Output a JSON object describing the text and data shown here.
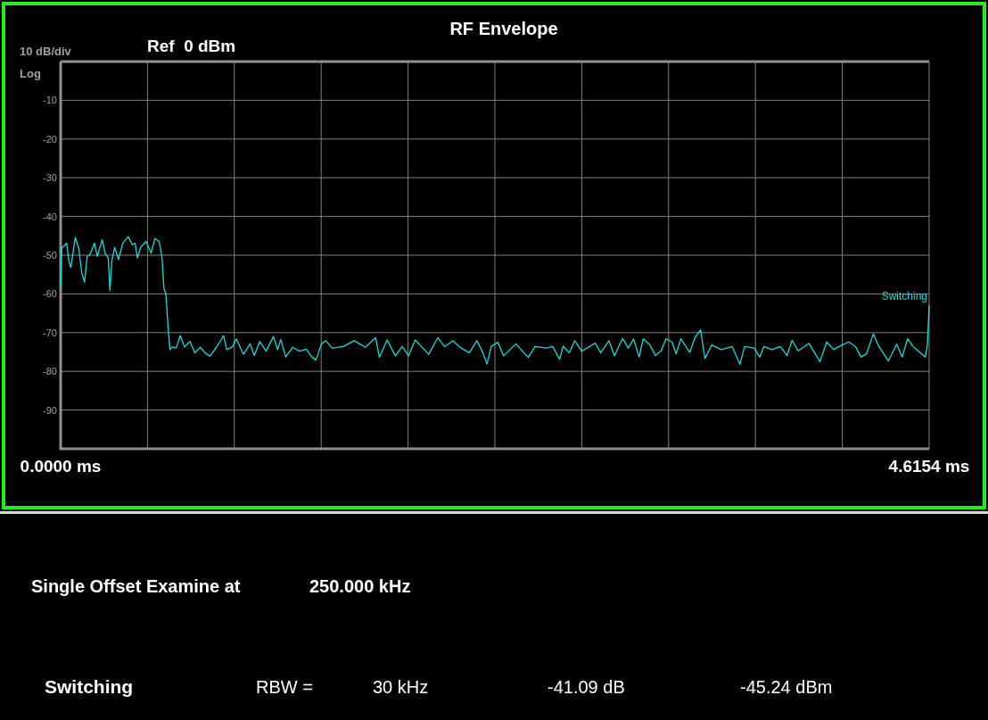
{
  "chart_data": {
    "type": "line",
    "title": "RF Envelope",
    "annotations": [
      "Ref  0 dBm",
      "10 dB/div",
      "Log",
      "Single Offset Examine at",
      "250.000 kHz",
      "Switching",
      "RBW =",
      "30 kHz",
      "-41.09 dB",
      "-45.24 dBm"
    ],
    "xlim": [
      0,
      4.6154
    ],
    "ylim": [
      -100,
      0
    ],
    "xticks": [
      {
        "value": 0,
        "label": "0.0000 ms"
      },
      {
        "value": 0.46154,
        "label": null
      },
      {
        "value": 0.92308,
        "label": null
      },
      {
        "value": 1.38462,
        "label": null
      },
      {
        "value": 1.84616,
        "label": null
      },
      {
        "value": 2.3077,
        "label": null
      },
      {
        "value": 2.76924,
        "label": null
      },
      {
        "value": 3.23078,
        "label": null
      },
      {
        "value": 3.69232,
        "label": null
      },
      {
        "value": 4.15386,
        "label": null
      },
      {
        "value": 4.6154,
        "label": "4.6154 ms"
      }
    ],
    "yticks": [
      {
        "value": 0,
        "label": null
      },
      -10,
      -20,
      -30,
      -40,
      -50,
      -60,
      -70,
      -80,
      -90,
      {
        "value": -100,
        "label": null
      }
    ],
    "grid": true,
    "legend": false,
    "marker": "none",
    "line_style": "solid",
    "series": [
      {
        "name": "Switching",
        "color": "#22d8d8",
        "x": [
          0,
          0.006,
          0.017,
          0.032,
          0.044,
          0.054,
          0.078,
          0.097,
          0.112,
          0.127,
          0.141,
          0.156,
          0.18,
          0.195,
          0.221,
          0.236,
          0.253,
          0.262,
          0.272,
          0.287,
          0.308,
          0.33,
          0.359,
          0.381,
          0.396,
          0.408,
          0.425,
          0.454,
          0.481,
          0.501,
          0.524,
          0.539,
          0.549,
          0.559,
          0.574,
          0.581,
          0.593,
          0.614,
          0.636,
          0.658,
          0.687,
          0.713,
          0.742,
          0.767,
          0.792,
          0.832,
          0.866,
          0.883,
          0.913,
          0.934,
          0.971,
          1.007,
          1.029,
          1.058,
          1.092,
          1.131,
          1.153,
          1.17,
          1.196,
          1.233,
          1.269,
          1.306,
          1.335,
          1.357,
          1.386,
          1.408,
          1.444,
          1.502,
          1.561,
          1.619,
          1.674,
          1.694,
          1.735,
          1.779,
          1.815,
          1.849,
          1.884,
          1.917,
          1.956,
          2.004,
          2.041,
          2.084,
          2.128,
          2.172,
          2.212,
          2.244,
          2.266,
          2.288,
          2.324,
          2.354,
          2.419,
          2.485,
          2.521,
          2.579,
          2.615,
          2.652,
          2.67,
          2.703,
          2.732,
          2.769,
          2.841,
          2.87,
          2.914,
          2.943,
          2.987,
          3.016,
          3.045,
          3.074,
          3.096,
          3.132,
          3.161,
          3.191,
          3.217,
          3.249,
          3.271,
          3.296,
          3.343,
          3.372,
          3.401,
          3.424,
          3.46,
          3.511,
          3.569,
          3.61,
          3.635,
          3.686,
          3.715,
          3.737,
          3.78,
          3.824,
          3.86,
          3.887,
          3.919,
          3.977,
          4.035,
          4.071,
          4.108,
          4.137,
          4.188,
          4.224,
          4.253,
          4.282,
          4.319,
          4.348,
          4.399,
          4.443,
          4.472,
          4.501,
          4.53,
          4.566,
          4.595,
          4.606,
          4.6154
        ],
        "values": [
          -58.4,
          -48.0,
          -47.7,
          -46.9,
          -51.5,
          -53.2,
          -45.4,
          -48.4,
          -54.5,
          -57.0,
          -50.3,
          -49.9,
          -46.9,
          -50.3,
          -46.0,
          -49.5,
          -50.7,
          -59.1,
          -51.5,
          -48.0,
          -51.1,
          -46.9,
          -45.2,
          -47.3,
          -46.9,
          -50.7,
          -48.0,
          -46.5,
          -49.5,
          -45.7,
          -46.5,
          -50.7,
          -58.7,
          -59.9,
          -70.6,
          -74.4,
          -73.7,
          -74.0,
          -70.8,
          -73.7,
          -72.3,
          -75.2,
          -73.8,
          -75.2,
          -76.1,
          -73.5,
          -70.8,
          -74.4,
          -73.7,
          -71.6,
          -75.6,
          -72.9,
          -75.9,
          -72.3,
          -74.8,
          -71.0,
          -74.4,
          -71.8,
          -76.3,
          -73.8,
          -74.8,
          -74.3,
          -76.3,
          -77.1,
          -72.9,
          -72.1,
          -74.0,
          -73.6,
          -72.1,
          -73.8,
          -71.3,
          -76.4,
          -71.9,
          -76.0,
          -73.6,
          -76.0,
          -71.9,
          -73.6,
          -75.6,
          -71.3,
          -73.6,
          -72.1,
          -74.0,
          -75.2,
          -72.1,
          -75.2,
          -78.1,
          -73.6,
          -72.5,
          -76.0,
          -72.9,
          -76.4,
          -73.6,
          -74.0,
          -73.6,
          -76.9,
          -73.5,
          -75.2,
          -72.1,
          -74.8,
          -72.7,
          -75.2,
          -72.1,
          -76.0,
          -71.5,
          -74.0,
          -71.7,
          -76.3,
          -71.6,
          -73.2,
          -75.9,
          -74.7,
          -71.6,
          -72.4,
          -75.5,
          -71.6,
          -75.1,
          -71.2,
          -69.3,
          -76.7,
          -73.2,
          -74.4,
          -73.6,
          -78.2,
          -73.6,
          -74.0,
          -76.3,
          -73.6,
          -74.4,
          -73.6,
          -75.9,
          -72.0,
          -74.7,
          -72.8,
          -77.5,
          -72.4,
          -74.4,
          -73.6,
          -72.4,
          -73.6,
          -76.3,
          -75.5,
          -70.3,
          -73.6,
          -77.3,
          -73.0,
          -76.3,
          -71.6,
          -73.6,
          -75.1,
          -76.3,
          -73.2,
          -63.0
        ]
      }
    ]
  }
}
